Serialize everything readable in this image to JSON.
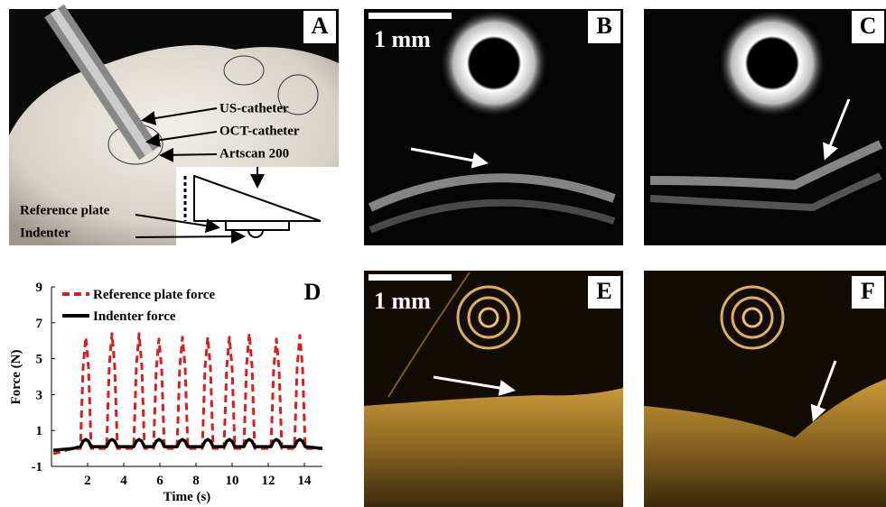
{
  "panels": {
    "A": {
      "label": "A",
      "annotations": [
        "US-catheter",
        "OCT-catheter",
        "Artscan 200",
        "Reference plate",
        "Indenter"
      ]
    },
    "B": {
      "label": "B",
      "scale_bar": "1 mm"
    },
    "C": {
      "label": "C"
    },
    "E": {
      "label": "E",
      "scale_bar": "1 mm"
    },
    "F": {
      "label": "F"
    }
  },
  "chart_data": {
    "type": "line",
    "label": "D",
    "xlabel": "Time (s)",
    "ylabel": "Force (N)",
    "xlim": [
      0,
      15
    ],
    "xticks": [
      2,
      4,
      6,
      8,
      10,
      12,
      14
    ],
    "ylim": [
      -1,
      9
    ],
    "yticks": [
      -1,
      1,
      3,
      5,
      7,
      9
    ],
    "legend": "upper left",
    "x": [
      0.1,
      1.2,
      1.6,
      1.75,
      1.9,
      2.05,
      2.2,
      3.05,
      3.2,
      3.35,
      3.5,
      3.65,
      4.55,
      4.7,
      4.85,
      5.0,
      5.15,
      5.65,
      5.8,
      5.95,
      6.1,
      6.25,
      6.95,
      7.1,
      7.25,
      7.4,
      7.55,
      8.35,
      8.5,
      8.65,
      8.8,
      8.95,
      9.55,
      9.7,
      9.85,
      10.0,
      10.15,
      10.65,
      10.8,
      10.95,
      11.1,
      11.25,
      12.15,
      12.3,
      12.45,
      12.6,
      12.75,
      13.45,
      13.6,
      13.75,
      13.9,
      14.05,
      15.0
    ],
    "series": [
      {
        "name": "Reference plate force",
        "color": "#d42020",
        "dashed": true,
        "values": [
          -0.3,
          0,
          0,
          4.5,
          6.2,
          4.5,
          0,
          0,
          4.6,
          6.4,
          4.6,
          0,
          0,
          4.6,
          6.4,
          4.6,
          0,
          0,
          4.4,
          6.1,
          4.4,
          0,
          0,
          4.5,
          6.2,
          4.5,
          0,
          0,
          4.5,
          6.2,
          4.5,
          0,
          0,
          4.5,
          6.2,
          4.5,
          0,
          0,
          4.6,
          6.4,
          4.6,
          0,
          0,
          4.4,
          6.1,
          4.4,
          0,
          0,
          4.5,
          6.3,
          4.5,
          0,
          0
        ]
      },
      {
        "name": "Indenter force",
        "color": "#000000",
        "dashed": false,
        "values": [
          -0.1,
          0,
          0.1,
          0.4,
          0.5,
          0.4,
          0.1,
          0.1,
          0.4,
          0.5,
          0.4,
          0.1,
          0.1,
          0.4,
          0.5,
          0.4,
          0.1,
          0.1,
          0.4,
          0.5,
          0.4,
          0.1,
          0.1,
          0.4,
          0.5,
          0.4,
          0.1,
          0.1,
          0.4,
          0.5,
          0.4,
          0.1,
          0.1,
          0.4,
          0.5,
          0.4,
          0.1,
          0.1,
          0.4,
          0.5,
          0.4,
          0.1,
          0.1,
          0.4,
          0.5,
          0.4,
          0.1,
          0.1,
          0.4,
          0.5,
          0.4,
          0.1,
          0
        ]
      }
    ]
  }
}
